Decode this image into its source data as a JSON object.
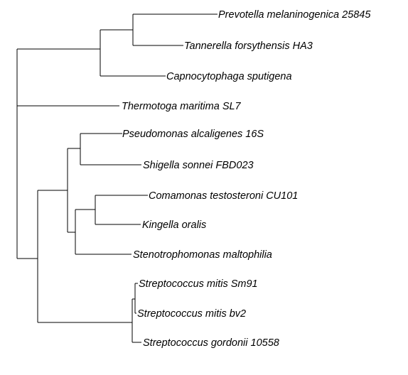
{
  "tree": {
    "taxa": [
      "Prevotella melaninogenica 25845",
      "Tannerella forsythensis HA3",
      "Capnocytophaga sputigena",
      "Thermotoga maritima SL7",
      "Pseudomonas alcaligenes 16S",
      "Shigella sonnei FBD023",
      "Comamonas testosteroni CU101",
      "Kingella oralis",
      "Stenotrophomonas maltophilia",
      "Streptococcus mitis Sm91",
      "Streptococcus mitis bv2",
      "Streptococcus gordonii 10558"
    ]
  }
}
